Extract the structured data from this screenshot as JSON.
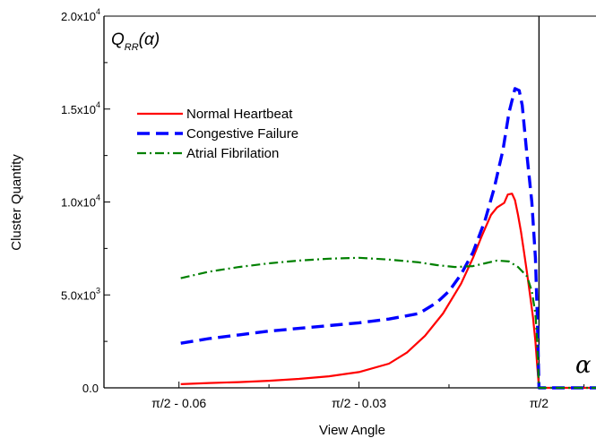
{
  "chart_data": {
    "type": "line",
    "xlabel": "View Angle",
    "ylabel": "Cluster Quantity",
    "ylim": [
      0,
      20000
    ],
    "xlim": [
      -0.0725,
      0.0095
    ],
    "x_ticks": [
      {
        "value": -0.06,
        "label": "π/2 - 0.06"
      },
      {
        "value": -0.03,
        "label": "π/2 - 0.03"
      },
      {
        "value": 0,
        "label": "π/2"
      }
    ],
    "y_ticks": [
      {
        "value": 0,
        "mantissa": "0.0",
        "exponent": ""
      },
      {
        "value": 5000,
        "mantissa": "5.0x10",
        "exponent": "3"
      },
      {
        "value": 10000,
        "mantissa": "1.0x10",
        "exponent": "4"
      },
      {
        "value": 15000,
        "mantissa": "1.5x10",
        "exponent": "4"
      },
      {
        "value": 20000,
        "mantissa": "2.0x10",
        "exponent": "4"
      }
    ],
    "x_offset_note": "x values are offsets from π/2",
    "annotation": {
      "main": "Q",
      "sub": "RR",
      "arg": "(α)"
    },
    "corner_symbol": "α",
    "legend_position": "upper-left",
    "grid": false,
    "series": [
      {
        "name": "Normal Heartbeat",
        "color": "#ff0000",
        "style": "solid",
        "points": [
          [
            -0.0597,
            200
          ],
          [
            -0.055,
            260
          ],
          [
            -0.05,
            310
          ],
          [
            -0.045,
            380
          ],
          [
            -0.04,
            480
          ],
          [
            -0.035,
            620
          ],
          [
            -0.03,
            850
          ],
          [
            -0.025,
            1300
          ],
          [
            -0.022,
            1900
          ],
          [
            -0.019,
            2800
          ],
          [
            -0.016,
            4000
          ],
          [
            -0.013,
            5600
          ],
          [
            -0.011,
            7000
          ],
          [
            -0.0095,
            8200
          ],
          [
            -0.008,
            9300
          ],
          [
            -0.007,
            9700
          ],
          [
            -0.0058,
            9950
          ],
          [
            -0.0052,
            10400
          ],
          [
            -0.0045,
            10450
          ],
          [
            -0.004,
            10100
          ],
          [
            -0.0035,
            9300
          ],
          [
            -0.003,
            8400
          ],
          [
            -0.0025,
            7300
          ],
          [
            -0.002,
            6200
          ],
          [
            -0.0015,
            5000
          ],
          [
            -0.001,
            3800
          ],
          [
            -0.0006,
            2500
          ],
          [
            -0.0003,
            1200
          ],
          [
            0,
            0
          ],
          [
            0.0095,
            0
          ]
        ]
      },
      {
        "name": "Congestive Failure",
        "color": "#0000ff",
        "style": "dashed",
        "points": [
          [
            -0.0597,
            2400
          ],
          [
            -0.055,
            2650
          ],
          [
            -0.05,
            2850
          ],
          [
            -0.045,
            3050
          ],
          [
            -0.04,
            3200
          ],
          [
            -0.035,
            3350
          ],
          [
            -0.03,
            3500
          ],
          [
            -0.025,
            3700
          ],
          [
            -0.02,
            4000
          ],
          [
            -0.017,
            4600
          ],
          [
            -0.015,
            5200
          ],
          [
            -0.013,
            6100
          ],
          [
            -0.011,
            7300
          ],
          [
            -0.009,
            9000
          ],
          [
            -0.0075,
            10700
          ],
          [
            -0.006,
            12800
          ],
          [
            -0.005,
            14800
          ],
          [
            -0.004,
            16100
          ],
          [
            -0.0033,
            16000
          ],
          [
            -0.0028,
            15200
          ],
          [
            -0.002,
            12500
          ],
          [
            -0.0012,
            10000
          ],
          [
            -0.0006,
            7000
          ],
          [
            -0.0003,
            4000
          ],
          [
            0,
            0
          ],
          [
            0.0095,
            0
          ]
        ]
      },
      {
        "name": "Atrial Fibrilation",
        "color": "#008000",
        "style": "dashdot",
        "points": [
          [
            -0.0597,
            5900
          ],
          [
            -0.055,
            6250
          ],
          [
            -0.05,
            6500
          ],
          [
            -0.045,
            6700
          ],
          [
            -0.04,
            6850
          ],
          [
            -0.035,
            6950
          ],
          [
            -0.03,
            7000
          ],
          [
            -0.025,
            6900
          ],
          [
            -0.02,
            6750
          ],
          [
            -0.017,
            6600
          ],
          [
            -0.014,
            6500
          ],
          [
            -0.011,
            6550
          ],
          [
            -0.009,
            6700
          ],
          [
            -0.007,
            6850
          ],
          [
            -0.005,
            6800
          ],
          [
            -0.0035,
            6500
          ],
          [
            -0.002,
            6000
          ],
          [
            -0.0012,
            5200
          ],
          [
            -0.0006,
            4000
          ],
          [
            -0.0003,
            2500
          ],
          [
            0,
            0
          ],
          [
            0.0095,
            0
          ]
        ]
      }
    ]
  }
}
